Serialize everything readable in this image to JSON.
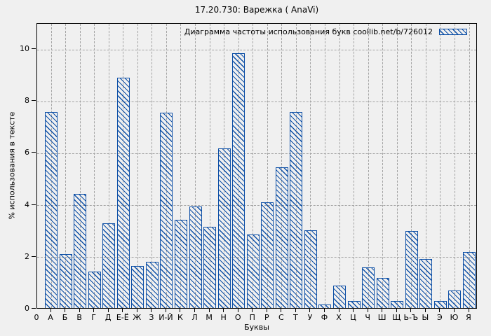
{
  "chart_data": {
    "type": "bar",
    "title": "17.20.730: Варежка ( AnaVi)",
    "legend": "Диаграмма частоты использования букв coollib.net/b/726012",
    "legend_position": "top-right-inside",
    "xlabel": "Буквы",
    "ylabel": "% использования в тексте",
    "origin_label": "0",
    "grid": true,
    "ylim": [
      0,
      11
    ],
    "yticks": [
      0,
      2,
      4,
      6,
      8,
      10
    ],
    "categories": [
      "А",
      "Б",
      "В",
      "Г",
      "Д",
      "Е-Ё",
      "Ж",
      "З",
      "И-Й",
      "К",
      "Л",
      "М",
      "Н",
      "О",
      "П",
      "Р",
      "С",
      "Т",
      "У",
      "Ф",
      "Х",
      "Ц",
      "Ч",
      "Ш",
      "Щ",
      "Ь-Ъ",
      "Ы",
      "Э",
      "Ю",
      "Я"
    ],
    "values": [
      7.54,
      2.08,
      4.4,
      1.39,
      3.27,
      8.87,
      1.62,
      1.79,
      7.52,
      3.41,
      3.9,
      3.13,
      6.15,
      9.82,
      2.82,
      4.06,
      5.43,
      7.55,
      2.98,
      0.14,
      0.87,
      0.28,
      1.57,
      1.17,
      0.26,
      2.97,
      1.89,
      0.26,
      0.68,
      2.16
    ],
    "colors": {
      "bar": "#0d4fa6",
      "grid": "#a3a3a3",
      "axis": "#000000",
      "background": "#f0f0f0",
      "text": "#000000"
    }
  }
}
